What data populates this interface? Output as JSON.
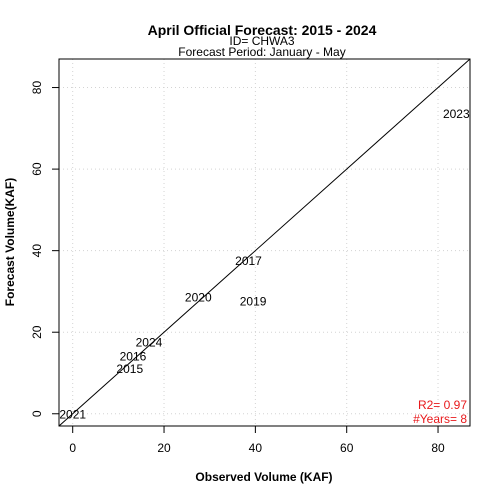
{
  "chart_data": {
    "type": "scatter",
    "title": "April Official Forecast: 2015 - 2024",
    "subtitle_id": "ID= CHWA3",
    "subtitle_period": "Forecast Period:  January - May",
    "xlabel": "Observed Volume (KAF)",
    "ylabel": "Forecast Volume(KAF)",
    "xlim": [
      -3,
      87
    ],
    "ylim": [
      -3,
      87
    ],
    "xticks": [
      0,
      20,
      40,
      60,
      80
    ],
    "yticks": [
      0,
      20,
      40,
      60,
      80
    ],
    "grid": true,
    "grid_color": "#d3d3d3",
    "points": [
      {
        "label": "2015",
        "x": 12.5,
        "y": 11
      },
      {
        "label": "2016",
        "x": 13.2,
        "y": 14
      },
      {
        "label": "2017",
        "x": 38.5,
        "y": 37.5
      },
      {
        "label": "2019",
        "x": 39.5,
        "y": 27.5
      },
      {
        "label": "2020",
        "x": 27.5,
        "y": 28.5
      },
      {
        "label": "2021",
        "x": 0,
        "y": -0.2
      },
      {
        "label": "2023",
        "x": 84,
        "y": 73.5
      },
      {
        "label": "2024",
        "x": 16.7,
        "y": 17.5
      }
    ],
    "identity_line": true,
    "stats": {
      "r2": "R2=  0.97",
      "years": "#Years=  8",
      "color": "#e8191c"
    }
  }
}
